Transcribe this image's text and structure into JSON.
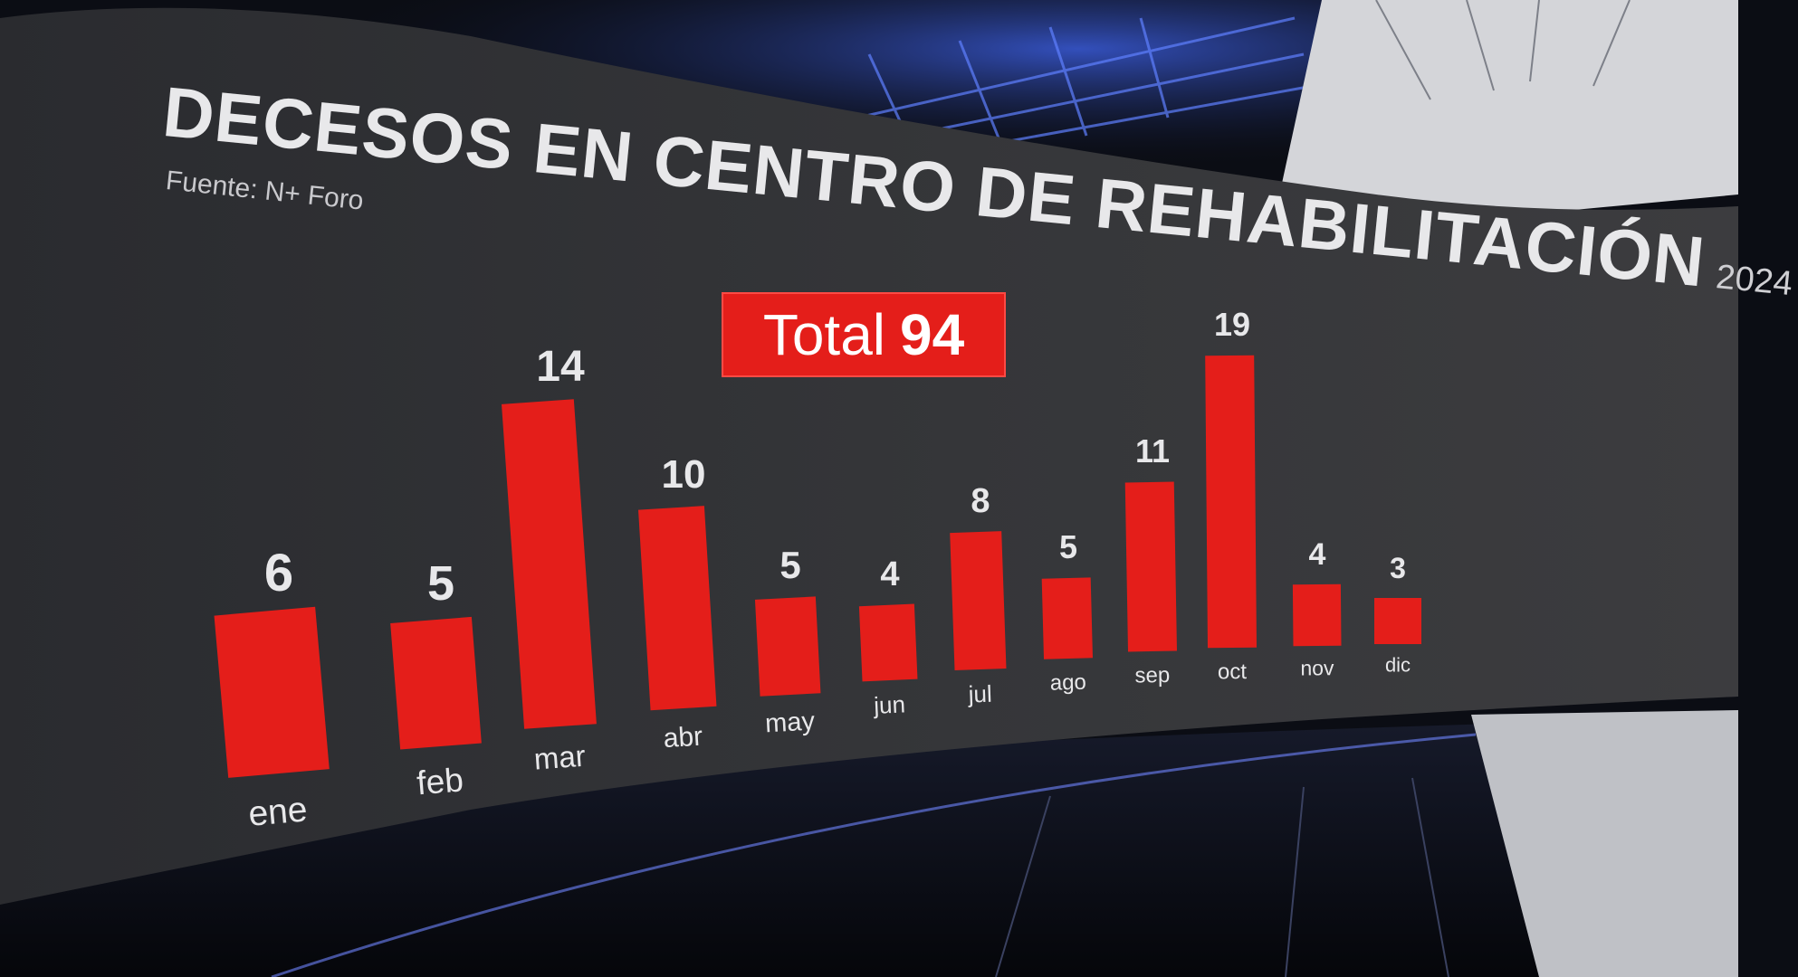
{
  "title": "DECESOS EN CENTRO DE REHABILITACIÓN",
  "title_year": "2024",
  "source": "Fuente: N+ Foro",
  "total_label": "Total",
  "total_value": "94",
  "colors": {
    "bar": "#e41e1a",
    "text": "#e8e8ea",
    "screen": "#2f3033"
  },
  "chart_data": {
    "type": "bar",
    "title": "DECESOS EN CENTRO DE REHABILITACIÓN 2024",
    "categories": [
      "ene",
      "feb",
      "mar",
      "abr",
      "may",
      "jun",
      "jul",
      "ago",
      "sep",
      "oct",
      "nov",
      "dic"
    ],
    "values": [
      6,
      5,
      14,
      10,
      5,
      4,
      8,
      5,
      11,
      19,
      4,
      3
    ],
    "xlabel": "",
    "ylabel": "",
    "grid": false,
    "legend": "none"
  }
}
